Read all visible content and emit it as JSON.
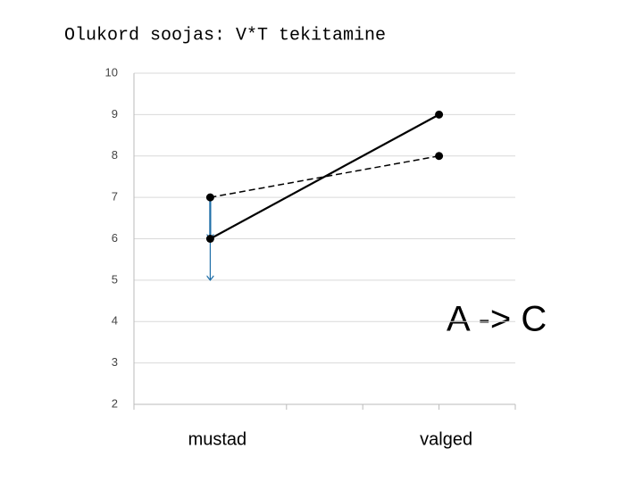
{
  "chart_data": {
    "type": "line",
    "title": "Olukord soojas: V*T tekitamine",
    "annotation": "A -> C",
    "categories": [
      "mustad",
      "valged"
    ],
    "series": [
      {
        "color": "#000000",
        "dashed": false,
        "values": [
          6,
          9
        ]
      },
      {
        "color": "#000000",
        "dashed": true,
        "values": [
          7,
          8
        ]
      }
    ],
    "arrows": [
      {
        "category": 0,
        "from": 7,
        "to": 6,
        "color": "#1f6fa8"
      },
      {
        "category": 0,
        "from": 6,
        "to": 5,
        "color": "#1f6fa8"
      }
    ],
    "ylim": [
      2,
      10
    ],
    "yticks": [
      2,
      3,
      4,
      5,
      6,
      7,
      8,
      9,
      10
    ],
    "grid": true
  }
}
